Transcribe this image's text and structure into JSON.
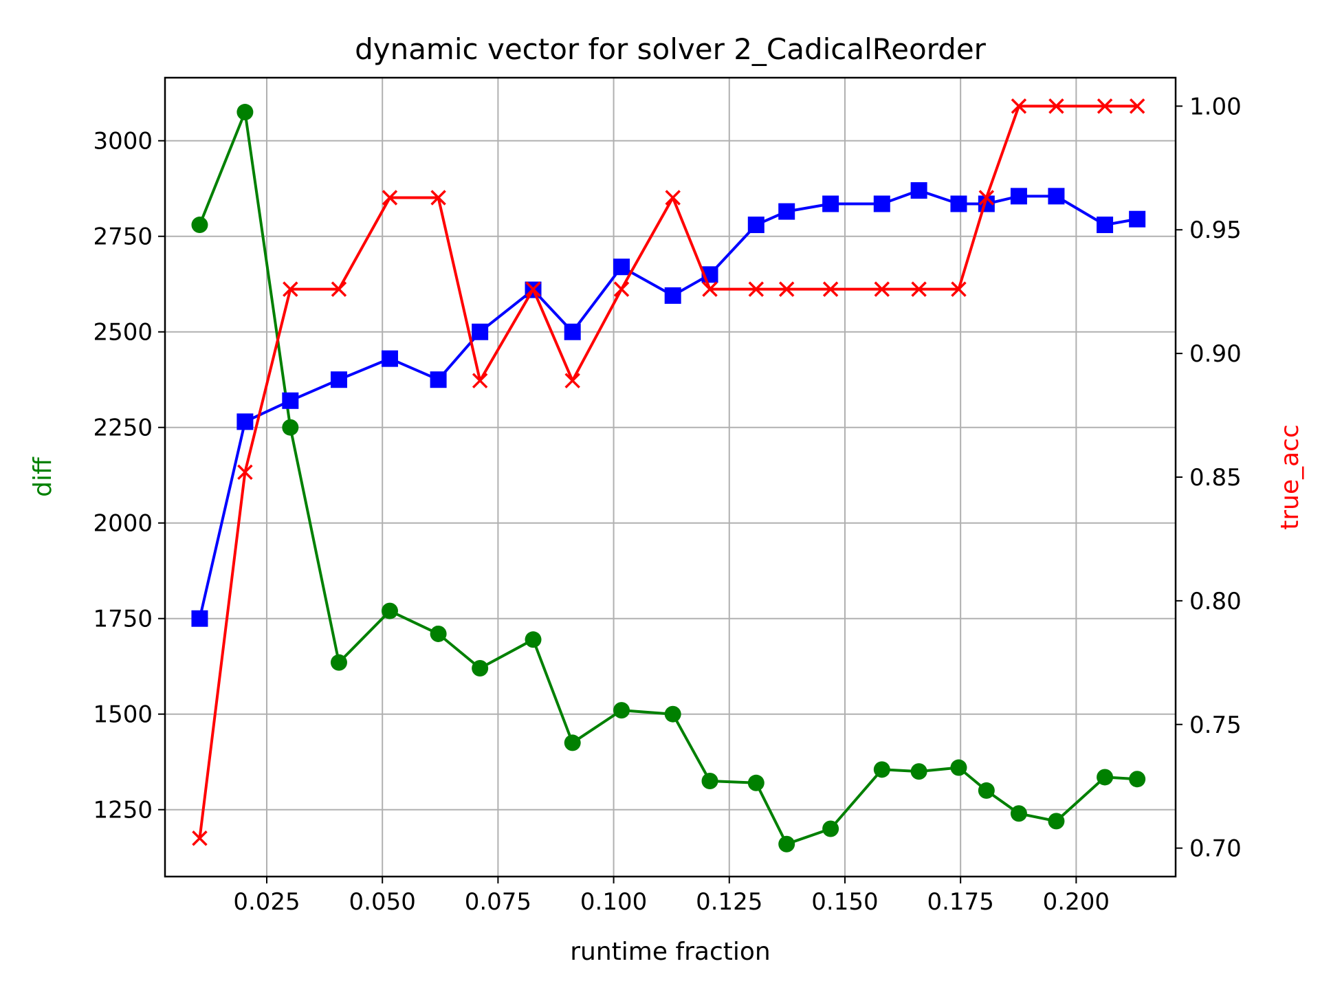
{
  "chart_data": {
    "type": "line",
    "title": "dynamic vector for solver 2_CadicalReorder",
    "xlabel": "runtime fraction",
    "ylabel": "diff",
    "y2label": "true_acc",
    "xlim": [
      0.003,
      0.2215
    ],
    "ylim": [
      1075,
      3165
    ],
    "y2lim": [
      0.6885,
      1.0115
    ],
    "x_ticks": [
      0.025,
      0.05,
      0.075,
      0.1,
      0.125,
      0.15,
      0.175,
      0.2
    ],
    "x_tick_labels": [
      "0.025",
      "0.050",
      "0.075",
      "0.100",
      "0.125",
      "0.150",
      "0.175",
      "0.200"
    ],
    "y_ticks": [
      1250,
      1500,
      1750,
      2000,
      2250,
      2500,
      2750,
      3000
    ],
    "y_tick_labels": [
      "1250",
      "1500",
      "1750",
      "2000",
      "2250",
      "2500",
      "2750",
      "3000"
    ],
    "y2_ticks": [
      0.7,
      0.75,
      0.8,
      0.85,
      0.9,
      0.95,
      1.0
    ],
    "y2_tick_labels": [
      "0.70",
      "0.75",
      "0.80",
      "0.85",
      "0.90",
      "0.95",
      "1.00"
    ],
    "grid": true,
    "x": [
      0.0105,
      0.0203,
      0.0301,
      0.0406,
      0.0516,
      0.0621,
      0.0711,
      0.0826,
      0.0911,
      0.1017,
      0.1128,
      0.1208,
      0.1308,
      0.1374,
      0.1469,
      0.158,
      0.166,
      0.1746,
      0.1806,
      0.1876,
      0.1957,
      0.2062,
      0.2132
    ],
    "series": [
      {
        "axis": "left",
        "color": "#008000",
        "marker": "circle",
        "values": [
          2780,
          3075,
          2250,
          1635,
          1770,
          1710,
          1620,
          1695,
          1425,
          1510,
          1500,
          1325,
          1320,
          1160,
          1200,
          1355,
          1350,
          1360,
          1300,
          1240,
          1220,
          1335,
          1330
        ]
      },
      {
        "axis": "left",
        "color": "#0000ff",
        "marker": "square",
        "values": [
          1750,
          2265,
          2320,
          2375,
          2430,
          2375,
          2500,
          2610,
          2500,
          2670,
          2595,
          2650,
          2780,
          2815,
          2835,
          2835,
          2870,
          2835,
          2835,
          2855,
          2855,
          2780,
          2795
        ]
      },
      {
        "axis": "right",
        "color": "#ff0000",
        "marker": "x",
        "values": [
          0.704,
          0.852,
          0.926,
          0.926,
          0.963,
          0.963,
          0.889,
          0.926,
          0.889,
          0.926,
          0.963,
          0.926,
          0.926,
          0.926,
          0.926,
          0.926,
          0.926,
          0.926,
          0.963,
          1.0,
          1.0,
          1.0,
          1.0
        ]
      }
    ]
  }
}
